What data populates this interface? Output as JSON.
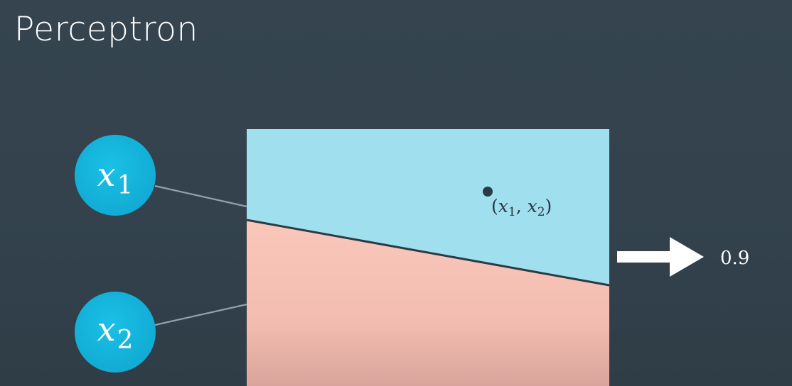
{
  "title": "Perceptron",
  "inputs": [
    {
      "var": "x",
      "subscript": "1"
    },
    {
      "var": "x",
      "subscript": "2"
    }
  ],
  "point_label": {
    "open": "(",
    "var1": "x",
    "sub1": "1",
    "sep": ", ",
    "var2": "x",
    "sub2": "2",
    "close": ")"
  },
  "output_value": "0.9",
  "colors": {
    "background": "#35444f",
    "node_fill": "#16b5dd",
    "positive_region": "#9edfee",
    "negative_region": "#f9c6ba",
    "boundary_line": "#2c3a45",
    "arrow": "#ffffff"
  },
  "icons": {
    "point": "dot-marker",
    "output": "right-arrow-icon"
  }
}
